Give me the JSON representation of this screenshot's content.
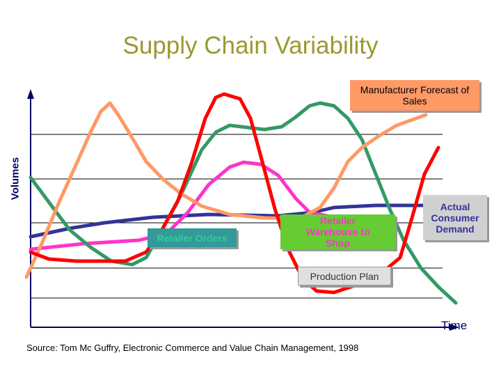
{
  "header": {
    "title": "Supply Chain Variability"
  },
  "axes": {
    "y_label": "Volumes",
    "x_label": "Time"
  },
  "labels": {
    "manufacturer_forecast": "Manufacturer Forecast of Sales",
    "retailer_orders": "Retailer Orders",
    "retailer_warehouse": "Retailer Warehouse to Shop",
    "consumer_demand": "Actual Consumer Demand",
    "production_plan": "Production Plan"
  },
  "footer": {
    "source": "Source: Tom Mc Guffry, Electronic Commerce and Value Chain Management, 1998"
  }
}
